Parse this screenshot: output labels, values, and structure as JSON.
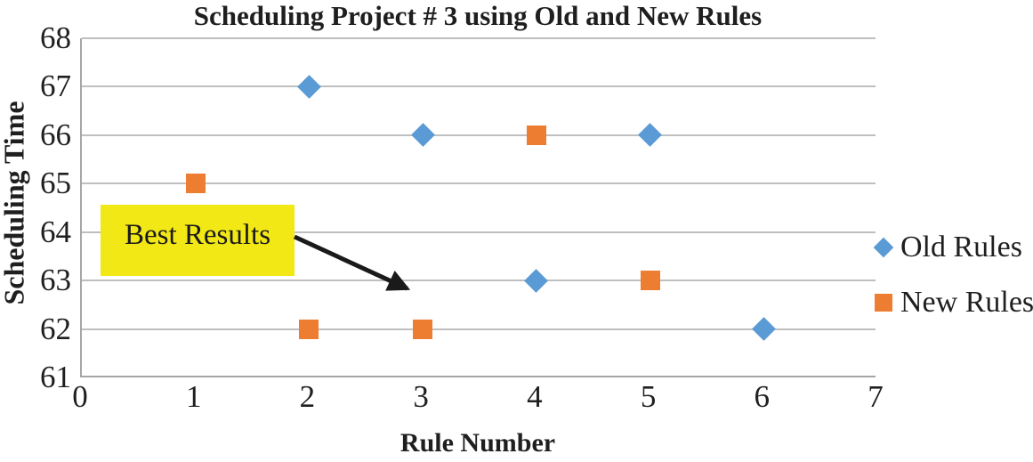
{
  "chart_data": {
    "type": "scatter",
    "title": "Scheduling Project # 3 using Old and New Rules",
    "xlabel": "Rule Number",
    "ylabel": "Scheduling Time",
    "xlim": [
      0,
      7
    ],
    "ylim": [
      61,
      68
    ],
    "x_ticks": [
      0,
      1,
      2,
      3,
      4,
      5,
      6,
      7
    ],
    "y_ticks": [
      61,
      62,
      63,
      64,
      65,
      66,
      67,
      68
    ],
    "grid": "horizontal",
    "legend_position": "right",
    "series": [
      {
        "name": "Old Rules",
        "marker": "diamond",
        "color": "#5B9BD5",
        "points": [
          [
            2,
            67
          ],
          [
            3,
            66
          ],
          [
            4,
            63
          ],
          [
            5,
            66
          ],
          [
            6,
            62
          ]
        ]
      },
      {
        "name": "New Rules",
        "marker": "square",
        "color": "#ED7D31",
        "points": [
          [
            1,
            65
          ],
          [
            2,
            62
          ],
          [
            3,
            62
          ],
          [
            4,
            66
          ],
          [
            5,
            63
          ]
        ]
      }
    ],
    "annotation": {
      "text": "Best Results",
      "fill": "#F2E816",
      "arrow_points_to": [
        3.05,
        62.65
      ]
    }
  },
  "colors": {
    "old_rules_blue": "#5B9BD5",
    "new_rules_orange": "#ED7D31",
    "annotation_yellow": "#F2E816",
    "gridline": "#BFBFBF",
    "axis_line": "#A6A6A6",
    "text": "#1F1F1F",
    "arrow_black": "#1A1A1A",
    "background": "#FFFFFF"
  }
}
